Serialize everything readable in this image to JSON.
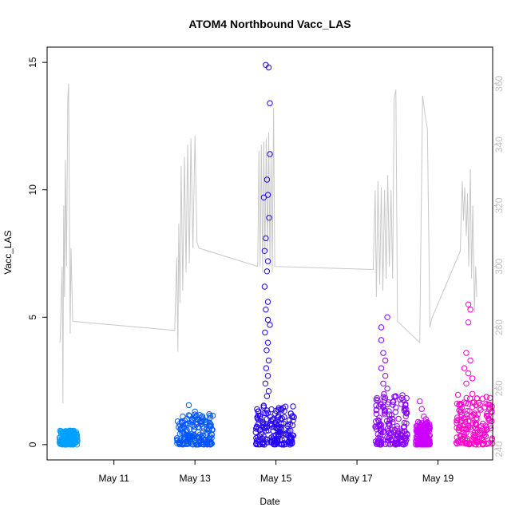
{
  "chart_data": {
    "type": "scatter",
    "title": "ATOM4 Northbound Vacc_LAS",
    "xlabel": "Date",
    "ylabel": "Vacc_LAS",
    "x_ticks": [
      "May 11",
      "May 13",
      "May 15",
      "May 17",
      "May 19"
    ],
    "x_tick_days": [
      11,
      13,
      15,
      17,
      19
    ],
    "xlim_days": [
      9.35,
      20.35
    ],
    "ylim": [
      -0.6,
      15.6
    ],
    "y_ticks": [
      0,
      5,
      10,
      15
    ],
    "y2lim": [
      236.5,
      372
    ],
    "y2_ticks": [
      240,
      260,
      280,
      300,
      320,
      340,
      360
    ],
    "grid": false,
    "legend": "none",
    "scatter_series": [
      {
        "color": "#00a0ff",
        "day_range": [
          9.65,
          10.1
        ],
        "y_range": [
          0,
          0.55
        ],
        "max_points": [
          [
            9.78,
            0.5
          ],
          [
            9.9,
            0.55
          ],
          [
            10.0,
            0.5
          ]
        ]
      },
      {
        "color": "#0055ff",
        "day_range": [
          12.55,
          13.45
        ],
        "y_range": [
          0,
          1.2
        ],
        "max_points": [
          [
            12.7,
            1.1
          ],
          [
            12.85,
            1.55
          ],
          [
            13.0,
            1.3
          ],
          [
            13.2,
            1.0
          ]
        ]
      },
      {
        "color": "#2200ff",
        "day_range": [
          14.5,
          15.45
        ],
        "y_range": [
          0,
          1.6
        ],
        "max_points": [
          [
            14.75,
            14.9
          ],
          [
            14.82,
            14.8
          ],
          [
            14.85,
            13.4
          ],
          [
            14.85,
            11.4
          ],
          [
            14.78,
            10.4
          ],
          [
            14.8,
            9.8
          ],
          [
            14.7,
            9.7
          ],
          [
            14.83,
            8.9
          ],
          [
            14.75,
            8.1
          ],
          [
            14.72,
            7.6
          ],
          [
            14.8,
            7.2
          ],
          [
            14.78,
            6.8
          ],
          [
            14.72,
            6.2
          ],
          [
            14.8,
            5.6
          ],
          [
            14.75,
            5.3
          ],
          [
            14.8,
            4.9
          ],
          [
            14.85,
            4.7
          ],
          [
            14.73,
            4.4
          ],
          [
            14.8,
            4.0
          ],
          [
            14.77,
            3.7
          ],
          [
            14.82,
            3.3
          ],
          [
            14.76,
            3.0
          ],
          [
            14.8,
            2.7
          ],
          [
            14.74,
            2.4
          ],
          [
            14.82,
            2.1
          ],
          [
            14.78,
            1.9
          ]
        ]
      },
      {
        "color": "#8800ff",
        "day_range": [
          17.45,
          18.25
        ],
        "y_range": [
          0,
          2.0
        ],
        "max_points": [
          [
            17.6,
            4.6
          ],
          [
            17.75,
            5.0
          ],
          [
            17.6,
            4.1
          ],
          [
            17.65,
            3.6
          ],
          [
            17.7,
            3.3
          ],
          [
            17.6,
            3.0
          ],
          [
            17.7,
            2.7
          ],
          [
            17.65,
            2.4
          ],
          [
            17.75,
            2.2
          ]
        ]
      },
      {
        "color": "#cc00ff",
        "day_range": [
          18.45,
          18.8
        ],
        "y_range": [
          0,
          0.9
        ],
        "max_points": [
          [
            18.55,
            1.7
          ],
          [
            18.6,
            1.4
          ],
          [
            18.65,
            1.1
          ],
          [
            18.7,
            1.0
          ]
        ]
      },
      {
        "color": "#ff00cc",
        "day_range": [
          19.45,
          20.35
        ],
        "y_range": [
          0,
          2.0
        ],
        "max_points": [
          [
            19.75,
            5.5
          ],
          [
            19.8,
            5.3
          ],
          [
            19.75,
            4.8
          ],
          [
            19.7,
            3.6
          ],
          [
            19.8,
            3.3
          ],
          [
            19.65,
            3.0
          ],
          [
            19.75,
            2.8
          ],
          [
            19.85,
            2.6
          ],
          [
            19.7,
            2.4
          ]
        ]
      }
    ],
    "line_series": {
      "color": "#c8c8c8",
      "points": [
        [
          9.67,
          275
        ],
        [
          9.72,
          300
        ],
        [
          9.74,
          255
        ],
        [
          9.76,
          320
        ],
        [
          9.78,
          290
        ],
        [
          9.8,
          335
        ],
        [
          9.83,
          300
        ],
        [
          9.86,
          355
        ],
        [
          9.88,
          360
        ],
        [
          9.9,
          320
        ],
        [
          9.92,
          278
        ],
        [
          9.94,
          306
        ],
        [
          9.96,
          295
        ],
        [
          9.98,
          282
        ],
        [
          12.5,
          279
        ],
        [
          12.55,
          303
        ],
        [
          12.58,
          272
        ],
        [
          12.6,
          314
        ],
        [
          12.63,
          288
        ],
        [
          12.66,
          333
        ],
        [
          12.7,
          292
        ],
        [
          12.74,
          336
        ],
        [
          12.78,
          298
        ],
        [
          12.82,
          340
        ],
        [
          12.86,
          301
        ],
        [
          12.9,
          342
        ],
        [
          12.95,
          306
        ],
        [
          13.0,
          343
        ],
        [
          13.05,
          308
        ],
        [
          13.1,
          306
        ],
        [
          14.55,
          300
        ],
        [
          14.58,
          338
        ],
        [
          14.61,
          300
        ],
        [
          14.64,
          340
        ],
        [
          14.67,
          298
        ],
        [
          14.7,
          341
        ],
        [
          14.73,
          302
        ],
        [
          14.76,
          342
        ],
        [
          14.79,
          305
        ],
        [
          14.82,
          344
        ],
        [
          14.85,
          300
        ],
        [
          14.88,
          338
        ],
        [
          14.91,
          298
        ],
        [
          14.94,
          352
        ],
        [
          14.97,
          300
        ],
        [
          17.4,
          299
        ],
        [
          17.45,
          325
        ],
        [
          17.48,
          290
        ],
        [
          17.52,
          328
        ],
        [
          17.56,
          294
        ],
        [
          17.6,
          326
        ],
        [
          17.64,
          292
        ],
        [
          17.68,
          325
        ],
        [
          17.72,
          296
        ],
        [
          17.76,
          330
        ],
        [
          17.8,
          300
        ],
        [
          17.84,
          325
        ],
        [
          17.88,
          296
        ],
        [
          17.92,
          355
        ],
        [
          17.96,
          358
        ],
        [
          18.0,
          282
        ],
        [
          18.55,
          275
        ],
        [
          18.62,
          356
        ],
        [
          18.68,
          350
        ],
        [
          18.74,
          345
        ],
        [
          18.8,
          280
        ],
        [
          18.85,
          283
        ],
        [
          19.55,
          305
        ],
        [
          19.6,
          328
        ],
        [
          19.63,
          315
        ],
        [
          19.66,
          326
        ],
        [
          19.7,
          310
        ],
        [
          19.73,
          324
        ],
        [
          19.76,
          300
        ],
        [
          19.8,
          332
        ],
        [
          19.83,
          296
        ],
        [
          19.86,
          320
        ],
        [
          19.9,
          285
        ],
        [
          19.93,
          300
        ],
        [
          19.96,
          290
        ]
      ]
    }
  }
}
